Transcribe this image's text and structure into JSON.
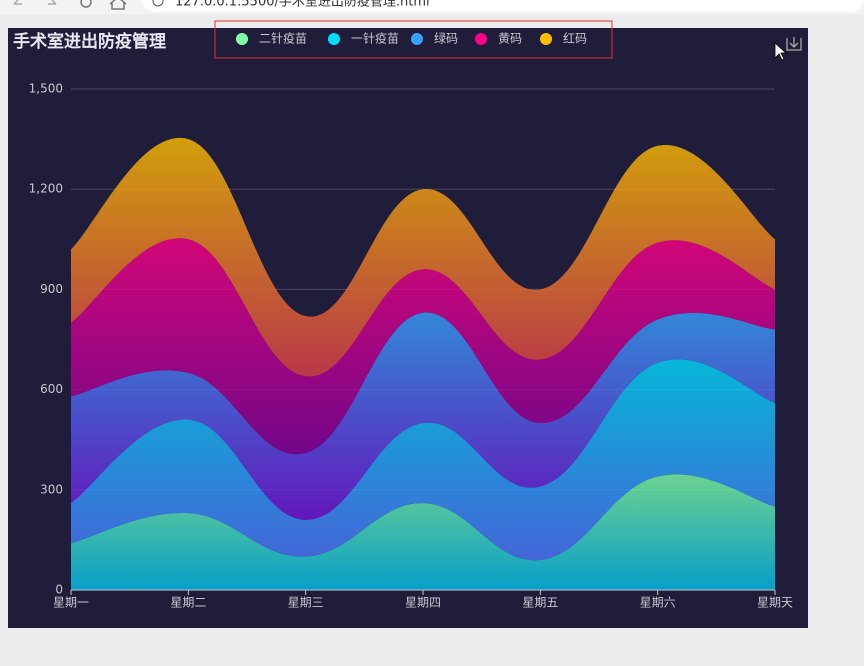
{
  "browser": {
    "url": "127.0.0.1:5500/手术室进出防疫管理.html"
  },
  "chart_data": {
    "type": "stacked-area",
    "title": "手术室进出防疫管理",
    "categories": [
      "星期一",
      "星期二",
      "星期三",
      "星期四",
      "星期五",
      "星期六",
      "星期天"
    ],
    "series": [
      {
        "name": "二针疫苗",
        "color": "#80ffa5",
        "gradient": [
          "rgba(128,255,165,0.8)",
          "rgba(1,191,236,0.8)"
        ],
        "values": [
          140,
          230,
          100,
          260,
          90,
          340,
          250
        ]
      },
      {
        "name": "一针疫苗",
        "color": "#00ddff",
        "gradient": [
          "rgba(0,221,255,0.8)",
          "rgba(77,119,255,0.8)"
        ],
        "values": [
          120,
          280,
          110,
          240,
          220,
          340,
          310
        ]
      },
      {
        "name": "绿码",
        "color": "#37a2ff",
        "gradient": [
          "rgba(55,162,255,0.8)",
          "rgba(116,21,219,0.8)"
        ],
        "values": [
          320,
          140,
          200,
          330,
          190,
          130,
          220
        ]
      },
      {
        "name": "黄码",
        "color": "#ff0087",
        "gradient": [
          "rgba(255,0,135,0.8)",
          "rgba(135,0,157,0.8)"
        ],
        "values": [
          220,
          400,
          230,
          130,
          190,
          230,
          120
        ]
      },
      {
        "name": "红码",
        "color": "#ffbf00",
        "gradient": [
          "rgba(255,191,0,0.8)",
          "rgba(224,62,76,0.8)"
        ],
        "values": [
          220,
          300,
          180,
          240,
          210,
          290,
          150
        ]
      }
    ],
    "ylim": [
      0,
      1500
    ],
    "yticks": [
      0,
      300,
      600,
      900,
      {
        "value": 1200,
        "label": "1,200"
      },
      {
        "value": 1500,
        "label": "1,500"
      }
    ],
    "grid": true,
    "smooth": true,
    "legend": "top"
  }
}
